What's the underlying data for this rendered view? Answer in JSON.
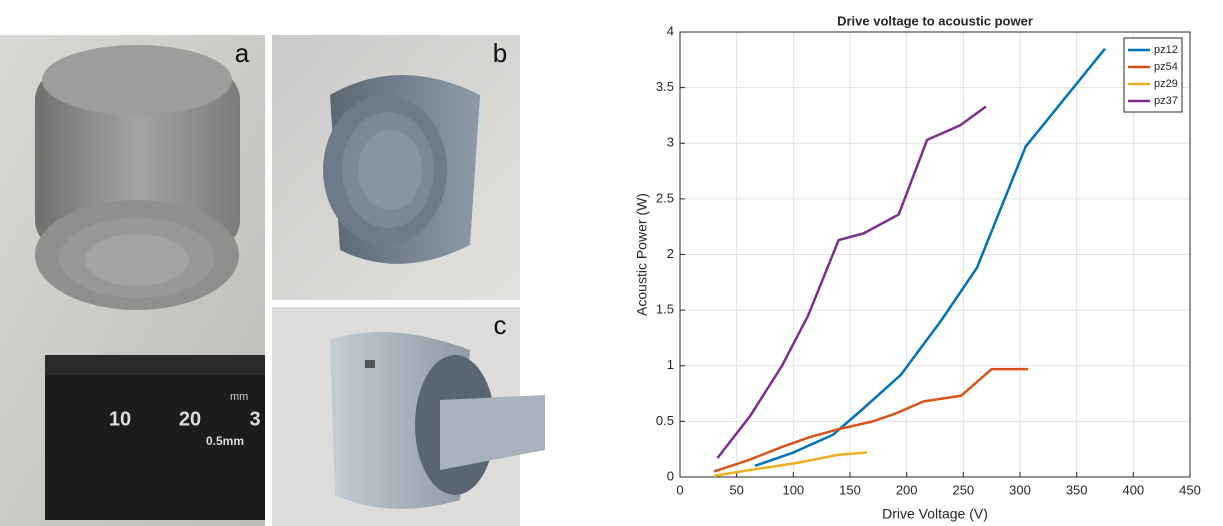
{
  "panels": [
    {
      "label": "a"
    },
    {
      "label": "b"
    },
    {
      "label": "c"
    }
  ],
  "ruler": [
    "mm",
    "10",
    "20",
    "3",
    "0.5mm"
  ],
  "chart_data": {
    "type": "line",
    "title": "Drive voltage to acoustic power",
    "x_label": "Drive Voltage (V)",
    "y_label": "Acoustic Power (W)",
    "xlim": [
      0,
      450
    ],
    "xticks": [
      0,
      50,
      100,
      150,
      200,
      250,
      300,
      350,
      400,
      450
    ],
    "ylim": [
      0,
      4
    ],
    "yticks": [
      0,
      0.5,
      1,
      1.5,
      2,
      2.5,
      3,
      3.5,
      4
    ],
    "grid": true,
    "legend": "upper right",
    "series": [
      {
        "name": "pz12",
        "color": "#0072BD",
        "x": [
          66,
          100,
          135,
          160,
          195,
          230,
          262,
          305,
          375
        ],
        "values": [
          0.1,
          0.22,
          0.38,
          0.6,
          0.92,
          1.4,
          1.88,
          2.97,
          3.85
        ]
      },
      {
        "name": "pz54",
        "color": "#D95319",
        "x": [
          30,
          60,
          90,
          115,
          140,
          170,
          190,
          215,
          248,
          275,
          307
        ],
        "values": [
          0.05,
          0.15,
          0.27,
          0.36,
          0.43,
          0.5,
          0.57,
          0.68,
          0.73,
          0.97,
          0.97
        ]
      },
      {
        "name": "pz29",
        "color": "#EDB120",
        "x": [
          30,
          60,
          80,
          105,
          140,
          165
        ],
        "values": [
          0.01,
          0.06,
          0.09,
          0.13,
          0.2,
          0.22
        ]
      },
      {
        "name": "pz37",
        "color": "#7E2F8E",
        "x": [
          33,
          62,
          90,
          113,
          140,
          162,
          193,
          218,
          247,
          270
        ],
        "values": [
          0.17,
          0.55,
          1.0,
          1.45,
          2.13,
          2.19,
          2.36,
          3.03,
          3.16,
          3.33
        ]
      }
    ]
  }
}
